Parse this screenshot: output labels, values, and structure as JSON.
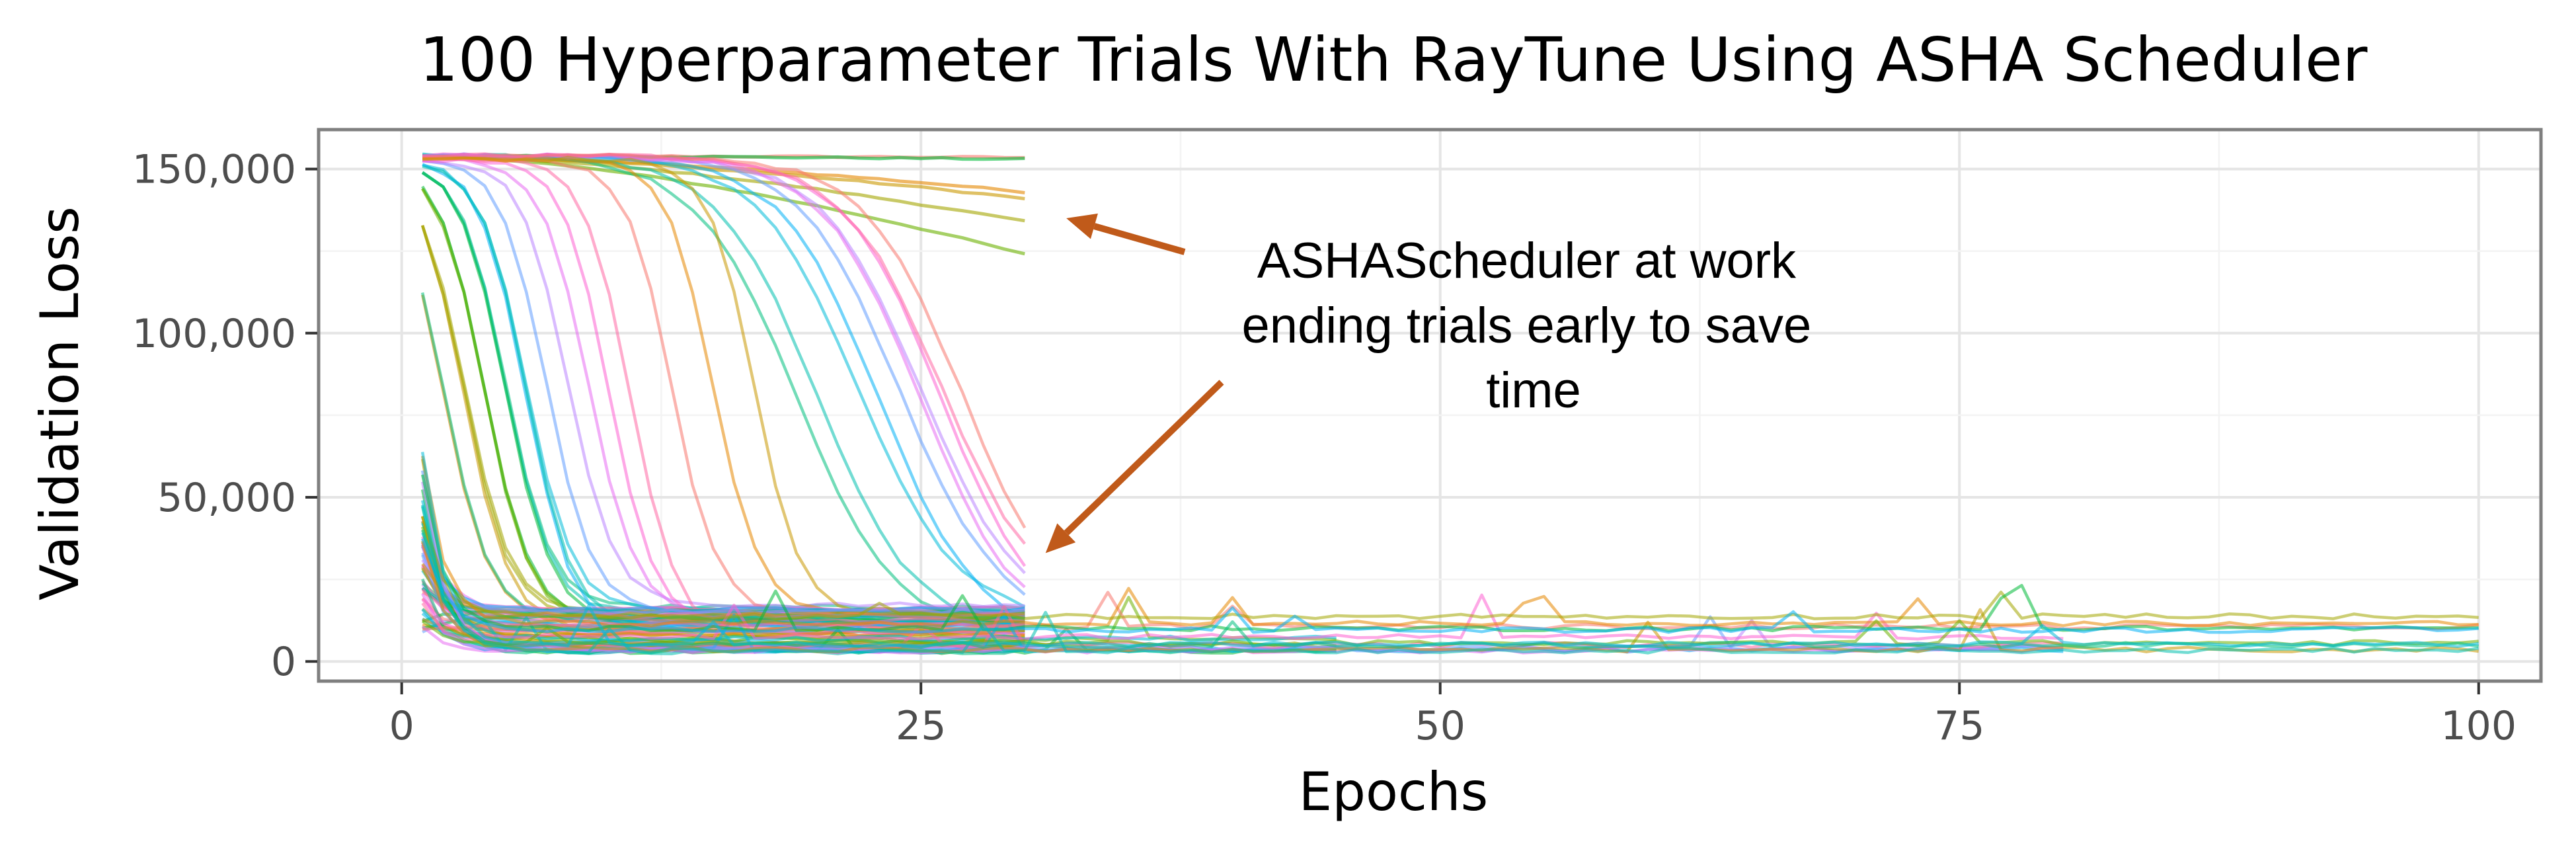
{
  "chart_data": {
    "type": "line",
    "title": "100 Hyperparameter Trials With RayTune Using ASHA Scheduler",
    "xlabel": "Epochs",
    "ylabel": "Validation Loss",
    "xlim": [
      -4,
      103
    ],
    "ylim": [
      -6000,
      162000
    ],
    "x_ticks": [
      0,
      25,
      50,
      75,
      100
    ],
    "x_tick_labels": [
      "0",
      "25",
      "50",
      "75",
      "100"
    ],
    "y_ticks": [
      0,
      50000,
      100000,
      150000
    ],
    "y_tick_labels": [
      "0",
      "50,000",
      "100,000",
      "150,000"
    ],
    "grid": true,
    "legend": "none",
    "n_trials": 100,
    "palette": [
      "#F8766D",
      "#E58700",
      "#C99800",
      "#A3A500",
      "#6BB100",
      "#00BA38",
      "#00BF7D",
      "#00C0AF",
      "#00BCD8",
      "#00B0F6",
      "#619CFF",
      "#B983FF",
      "#E76BF3",
      "#FD61D1",
      "#FF67A4"
    ],
    "series_groups": [
      {
        "name_hint": "plateau_near_top",
        "count": 6,
        "stop_epoch": 30,
        "start": 154000,
        "end_values": [
          153500,
          143000,
          141000,
          134000,
          124000,
          153000
        ]
      },
      {
        "name_hint": "slow_sigmoid_decay",
        "count": 10,
        "stop_epoch": 30,
        "start": 154000,
        "midpoints": [
          19,
          20,
          22,
          23,
          24,
          25,
          25,
          26,
          26,
          27
        ],
        "floor": 5000
      },
      {
        "name_hint": "fast_decay_to_floor",
        "count": 22,
        "stop_epoch": 30,
        "start": 153000,
        "midpoints": [
          2,
          3,
          3,
          4,
          4,
          5,
          5,
          6,
          6,
          7,
          8,
          9,
          10,
          11,
          13,
          15,
          17,
          3,
          4,
          5,
          2,
          6
        ],
        "floor": 8000
      },
      {
        "name_hint": "low_start_stopped_early",
        "count": 40,
        "stop_epoch": 30,
        "start_range": [
          8000,
          45000
        ],
        "floor_range": [
          3000,
          17000
        ]
      },
      {
        "name_hint": "stopped_at_45",
        "count": 6,
        "stop_epoch": 45,
        "floor_range": [
          3000,
          9000
        ]
      },
      {
        "name_hint": "stopped_at_80",
        "count": 6,
        "stop_epoch": 80,
        "floor_range": [
          3000,
          8000
        ]
      },
      {
        "name_hint": "full_100_epochs",
        "count": 10,
        "stop_epoch": 100,
        "floor_range": [
          2500,
          15000
        ]
      }
    ],
    "annotation": {
      "lines": [
        "ASHAScheduler at work",
        "ending trials early to save",
        "time"
      ],
      "color": "#000000",
      "arrow_color": "#C05A1A",
      "arrow_targets": [
        {
          "x": 32,
          "y": 135000
        },
        {
          "x": 31,
          "y": 33000
        }
      ]
    }
  }
}
